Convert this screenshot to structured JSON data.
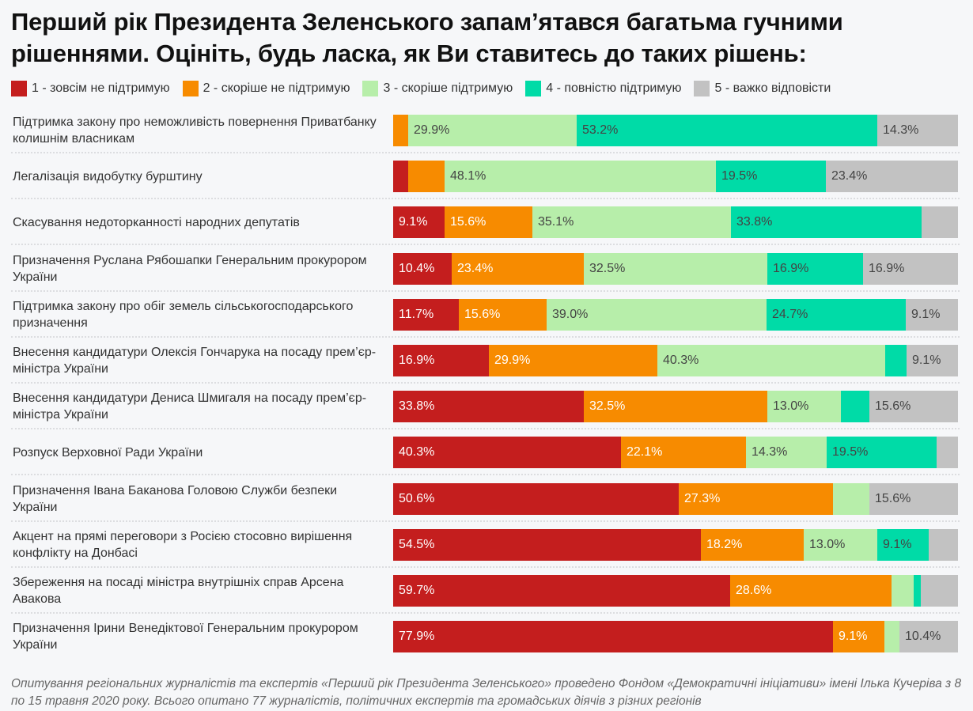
{
  "chart_data": {
    "type": "bar",
    "orientation": "horizontal",
    "stacked": true,
    "title": "Перший рік Президента Зеленського запам’ятався багатьма гучними рішеннями. Оцініть, будь ласка, як Ви ставитесь до таких рішень:",
    "unit": "%",
    "xlim": [
      0,
      100
    ],
    "legend_position": "top-left",
    "series": [
      {
        "name": "1 - зовсім не підтримую",
        "color": "#c41e1e",
        "label_color": "light"
      },
      {
        "name": "2 - скоріше не підтримую",
        "color": "#f78b00",
        "label_color": "light"
      },
      {
        "name": "3 - скоріше підтримую",
        "color": "#b7eeaa",
        "label_color": "dark"
      },
      {
        "name": "4 - повністю підтримую",
        "color": "#00dba7",
        "label_color": "dark"
      },
      {
        "name": "5 - важко відповісти",
        "color": "#c2c2c2",
        "label_color": "dark"
      }
    ],
    "categories": [
      "Підтримка закону про неможливість повернення Приватбанку колишнім власникам",
      "Легалізація видобутку бурштину",
      "Скасування недоторканності народних депутатів",
      "Призначення Руслана Рябошапки Генеральним прокурором України",
      "Підтримка закону про обіг земель сільськогосподарського призначення",
      "Внесення кандидатури Олексія Гончарука на посаду прем’єр-міністра України",
      "Внесення кандидатури Дениса Шмигаля на посаду прем’єр-міністра України",
      "Розпуск Верховної Ради України",
      "Призначення Івана Баканова Головою Служби безпеки України",
      "Акцент на прямі переговори з Росією стосовно вирішення конфлікту на Донбасі",
      "Збереження на посаді міністра внутрішніх справ Арсена Авакова",
      "Призначення Ірини Венедіктової Генеральним прокурором України"
    ],
    "values": [
      [
        0.0,
        2.6,
        29.9,
        53.2,
        14.3
      ],
      [
        2.6,
        6.5,
        48.1,
        19.5,
        23.4
      ],
      [
        9.1,
        15.6,
        35.1,
        33.8,
        6.4
      ],
      [
        10.4,
        23.4,
        32.5,
        16.9,
        16.9
      ],
      [
        11.7,
        15.6,
        39.0,
        24.7,
        9.1
      ],
      [
        16.9,
        29.9,
        40.3,
        3.8,
        9.1
      ],
      [
        33.8,
        32.5,
        13.0,
        5.1,
        15.6
      ],
      [
        40.3,
        22.1,
        14.3,
        19.5,
        3.8
      ],
      [
        50.6,
        27.3,
        6.5,
        0.0,
        15.6
      ],
      [
        54.5,
        18.2,
        13.0,
        9.1,
        5.2
      ],
      [
        59.7,
        28.6,
        3.9,
        1.3,
        6.5
      ],
      [
        77.9,
        9.1,
        2.6,
        0.0,
        10.4
      ]
    ],
    "labels_shown": [
      [
        null,
        null,
        "29.9%",
        "53.2%",
        "14.3%"
      ],
      [
        null,
        null,
        "48.1%",
        "19.5%",
        "23.4%"
      ],
      [
        "9.1%",
        "15.6%",
        "35.1%",
        "33.8%",
        null
      ],
      [
        "10.4%",
        "23.4%",
        "32.5%",
        "16.9%",
        "16.9%"
      ],
      [
        "11.7%",
        "15.6%",
        "39.0%",
        "24.7%",
        "9.1%"
      ],
      [
        "16.9%",
        "29.9%",
        "40.3%",
        null,
        "9.1%"
      ],
      [
        "33.8%",
        "32.5%",
        "13.0%",
        null,
        "15.6%"
      ],
      [
        "40.3%",
        "22.1%",
        "14.3%",
        "19.5%",
        null
      ],
      [
        "50.6%",
        "27.3%",
        null,
        null,
        "15.6%"
      ],
      [
        "54.5%",
        "18.2%",
        "13.0%",
        "9.1%",
        null
      ],
      [
        "59.7%",
        "28.6%",
        null,
        null,
        null
      ],
      [
        "77.9%",
        "9.1%",
        null,
        null,
        "10.4%"
      ]
    ],
    "footnote": "Опитування регіональних журналістів та експертів «Перший рік Президента Зеленського» проведено Фондом «Демократичні ініціативи» імені Ілька Кучеріва з 8 по 15 травня 2020 року. Всього опитано 77 журналістів, політичних експертів та громадських діячів з різних регіонів"
  }
}
